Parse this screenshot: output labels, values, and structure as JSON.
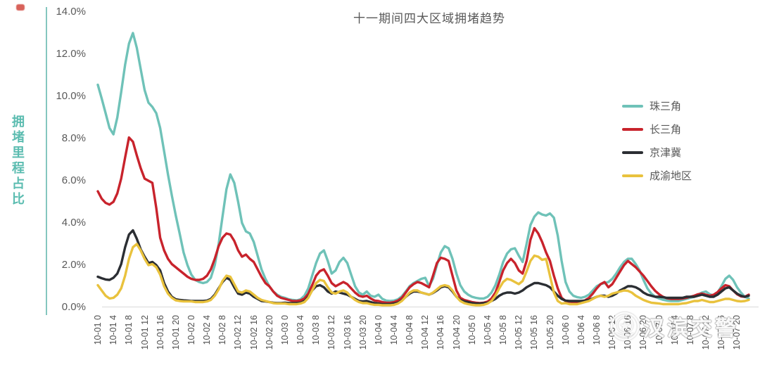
{
  "title": "十一期间四大区域拥堵趋势",
  "y_axis_title": "拥堵里程占比",
  "watermark": {
    "text": "汉滨交警",
    "icon": "police-badge-icon"
  },
  "colors": {
    "accent_axis": "#85c7bf",
    "axis_text": "#595959",
    "baseline_grid": "#d9d9d9",
    "series_zhusanjiao": "#6fc2b8",
    "series_changsanjiao": "#c8232c",
    "series_jingjinji": "#2b2e33",
    "series_chengyu": "#e9c23d"
  },
  "chart_data": {
    "type": "line",
    "title": "十一期间四大区域拥堵趋势",
    "xlabel": "",
    "ylabel": "拥堵里程占比",
    "ylim": [
      0,
      14
    ],
    "grid": "baseline-only",
    "legend_position": "right",
    "x_unit": "hourly points from 10-01 00:00 to 10-07 23:00",
    "y_ticks": [
      0,
      2,
      4,
      6,
      8,
      10,
      12,
      14
    ],
    "y_tick_labels": [
      "0.0%",
      "2.0%",
      "4.0%",
      "6.0%",
      "8.0%",
      "10.0%",
      "12.0%",
      "14.0%"
    ],
    "x_tick_hours": [
      0,
      4,
      8,
      12,
      16,
      20,
      24,
      28,
      32,
      36,
      40,
      44,
      48,
      52,
      56,
      60,
      64,
      68,
      72,
      76,
      80,
      84,
      88,
      92,
      96,
      100,
      104,
      108,
      112,
      116,
      120,
      124,
      128,
      132,
      136,
      140,
      144,
      148,
      152,
      156,
      160,
      164
    ],
    "x_tick_labels": [
      "10-01 0",
      "10-01 4",
      "10-01 8",
      "10-01 12",
      "10-01 16",
      "10-01 20",
      "10-02 0",
      "10-02 4",
      "10-02 8",
      "10-02 12",
      "10-02 16",
      "10-02 20",
      "10-03 0",
      "10-03 4",
      "10-03 8",
      "10-03 12",
      "10-03 16",
      "10-03 20",
      "10-04 0",
      "10-04 4",
      "10-04 8",
      "10-04 12",
      "10-04 16",
      "10-04 20",
      "10-05 0",
      "10-05 4",
      "10-05 8",
      "10-05 12",
      "10-05 16",
      "10-05 20",
      "10-06 0",
      "10-06 4",
      "10-06 8",
      "10-06 12",
      "10-06 16",
      "10-06 20",
      "10-07 0",
      "10-07 4",
      "10-07 8",
      "10-07 12",
      "10-07 16",
      "10-07 20"
    ],
    "series": [
      {
        "name": "珠三角",
        "color": "#6fc2b8",
        "values": [
          10.55,
          9.9,
          9.2,
          8.5,
          8.2,
          9.0,
          10.2,
          11.5,
          12.5,
          13.0,
          12.3,
          11.3,
          10.3,
          9.7,
          9.5,
          9.2,
          8.5,
          7.4,
          6.3,
          5.3,
          4.35,
          3.5,
          2.6,
          2.0,
          1.55,
          1.3,
          1.2,
          1.15,
          1.2,
          1.4,
          2.0,
          3.0,
          4.3,
          5.6,
          6.3,
          5.9,
          5.0,
          4.0,
          3.6,
          3.5,
          3.1,
          2.45,
          1.8,
          1.35,
          1.0,
          0.75,
          0.6,
          0.5,
          0.45,
          0.38,
          0.35,
          0.33,
          0.38,
          0.55,
          0.9,
          1.5,
          2.1,
          2.55,
          2.7,
          2.2,
          1.6,
          1.75,
          2.15,
          2.35,
          2.1,
          1.55,
          1.0,
          0.7,
          0.6,
          0.75,
          0.55,
          0.5,
          0.6,
          0.4,
          0.32,
          0.3,
          0.32,
          0.38,
          0.52,
          0.75,
          1.0,
          1.15,
          1.25,
          1.35,
          1.4,
          1.0,
          1.35,
          2.0,
          2.6,
          2.9,
          2.8,
          2.3,
          1.6,
          1.05,
          0.75,
          0.6,
          0.5,
          0.45,
          0.42,
          0.42,
          0.5,
          0.7,
          1.05,
          1.55,
          2.15,
          2.55,
          2.75,
          2.8,
          2.45,
          2.15,
          3.0,
          3.9,
          4.3,
          4.5,
          4.4,
          4.35,
          4.45,
          4.25,
          3.4,
          2.2,
          1.2,
          0.75,
          0.55,
          0.48,
          0.45,
          0.5,
          0.6,
          0.8,
          1.0,
          1.1,
          1.15,
          1.2,
          1.35,
          1.6,
          1.9,
          2.15,
          2.3,
          2.3,
          2.05,
          1.75,
          1.3,
          0.9,
          0.65,
          0.5,
          0.42,
          0.36,
          0.32,
          0.3,
          0.3,
          0.3,
          0.35,
          0.4,
          0.45,
          0.5,
          0.6,
          0.7,
          0.75,
          0.62,
          0.55,
          0.7,
          1.0,
          1.35,
          1.5,
          1.3,
          0.95,
          0.7,
          0.5,
          0.42
        ]
      },
      {
        "name": "长三角",
        "color": "#c8232c",
        "values": [
          5.5,
          5.15,
          4.95,
          4.87,
          5.0,
          5.4,
          6.1,
          7.1,
          8.05,
          7.85,
          7.2,
          6.6,
          6.1,
          6.0,
          5.9,
          4.7,
          3.3,
          2.7,
          2.3,
          2.05,
          1.9,
          1.75,
          1.6,
          1.45,
          1.35,
          1.3,
          1.3,
          1.35,
          1.5,
          1.8,
          2.3,
          2.9,
          3.3,
          3.5,
          3.45,
          3.15,
          2.7,
          2.4,
          2.5,
          2.3,
          2.15,
          1.8,
          1.45,
          1.15,
          1.0,
          0.75,
          0.55,
          0.45,
          0.4,
          0.35,
          0.3,
          0.3,
          0.33,
          0.42,
          0.65,
          1.05,
          1.5,
          1.72,
          1.8,
          1.5,
          1.15,
          1.0,
          1.1,
          1.2,
          1.1,
          0.9,
          0.7,
          0.55,
          0.5,
          0.55,
          0.42,
          0.32,
          0.3,
          0.25,
          0.22,
          0.22,
          0.25,
          0.32,
          0.45,
          0.7,
          0.95,
          1.1,
          1.2,
          1.15,
          1.05,
          0.95,
          1.5,
          2.1,
          2.35,
          2.3,
          2.2,
          1.5,
          0.8,
          0.45,
          0.35,
          0.3,
          0.25,
          0.22,
          0.2,
          0.22,
          0.27,
          0.42,
          0.7,
          1.2,
          1.75,
          2.1,
          2.3,
          2.1,
          1.75,
          1.6,
          2.2,
          3.2,
          3.75,
          3.5,
          3.1,
          2.6,
          2.2,
          1.5,
          0.9,
          0.45,
          0.3,
          0.27,
          0.25,
          0.25,
          0.28,
          0.33,
          0.45,
          0.65,
          0.9,
          1.1,
          1.2,
          0.95,
          1.1,
          1.4,
          1.7,
          2.0,
          2.2,
          2.05,
          1.9,
          1.7,
          1.5,
          1.25,
          1.0,
          0.78,
          0.62,
          0.5,
          0.43,
          0.4,
          0.4,
          0.4,
          0.42,
          0.45,
          0.5,
          0.55,
          0.62,
          0.65,
          0.6,
          0.55,
          0.6,
          0.72,
          0.9,
          1.05,
          1.0,
          0.8,
          0.62,
          0.52,
          0.5,
          0.6
        ]
      },
      {
        "name": "京津冀",
        "color": "#2b2e33",
        "values": [
          1.45,
          1.38,
          1.32,
          1.3,
          1.4,
          1.6,
          2.05,
          2.85,
          3.45,
          3.65,
          3.25,
          2.75,
          2.4,
          2.1,
          2.15,
          2.0,
          1.75,
          1.15,
          0.75,
          0.5,
          0.38,
          0.35,
          0.33,
          0.32,
          0.3,
          0.3,
          0.3,
          0.3,
          0.32,
          0.4,
          0.6,
          0.9,
          1.2,
          1.4,
          1.3,
          0.95,
          0.65,
          0.6,
          0.7,
          0.65,
          0.5,
          0.4,
          0.3,
          0.28,
          0.25,
          0.22,
          0.2,
          0.2,
          0.22,
          0.2,
          0.2,
          0.2,
          0.22,
          0.3,
          0.5,
          0.8,
          1.0,
          1.05,
          0.95,
          0.75,
          0.65,
          0.75,
          0.7,
          0.65,
          0.6,
          0.5,
          0.4,
          0.3,
          0.28,
          0.3,
          0.25,
          0.2,
          0.18,
          0.15,
          0.15,
          0.15,
          0.18,
          0.22,
          0.32,
          0.5,
          0.65,
          0.75,
          0.75,
          0.7,
          0.65,
          0.6,
          0.68,
          0.8,
          0.95,
          1.0,
          0.95,
          0.75,
          0.5,
          0.35,
          0.28,
          0.25,
          0.2,
          0.18,
          0.18,
          0.2,
          0.22,
          0.3,
          0.4,
          0.55,
          0.65,
          0.7,
          0.7,
          0.65,
          0.7,
          0.8,
          0.95,
          1.05,
          1.15,
          1.15,
          1.1,
          1.05,
          0.95,
          0.75,
          0.55,
          0.4,
          0.32,
          0.3,
          0.3,
          0.3,
          0.3,
          0.32,
          0.35,
          0.42,
          0.5,
          0.55,
          0.55,
          0.5,
          0.55,
          0.65,
          0.8,
          0.9,
          1.0,
          1.0,
          0.95,
          0.85,
          0.7,
          0.6,
          0.55,
          0.5,
          0.5,
          0.48,
          0.45,
          0.45,
          0.45,
          0.45,
          0.45,
          0.5,
          0.5,
          0.5,
          0.55,
          0.6,
          0.55,
          0.5,
          0.5,
          0.6,
          0.75,
          0.9,
          0.95,
          0.8,
          0.65,
          0.55,
          0.5,
          0.55
        ]
      },
      {
        "name": "成渝地区",
        "color": "#e9c23d",
        "values": [
          1.05,
          0.8,
          0.55,
          0.42,
          0.45,
          0.6,
          0.9,
          1.5,
          2.3,
          2.85,
          3.0,
          2.7,
          2.3,
          2.0,
          2.05,
          1.9,
          1.55,
          1.0,
          0.65,
          0.45,
          0.33,
          0.3,
          0.28,
          0.28,
          0.28,
          0.25,
          0.25,
          0.25,
          0.28,
          0.35,
          0.55,
          0.85,
          1.25,
          1.5,
          1.45,
          1.1,
          0.75,
          0.7,
          0.8,
          0.75,
          0.6,
          0.45,
          0.35,
          0.3,
          0.25,
          0.2,
          0.18,
          0.18,
          0.18,
          0.15,
          0.15,
          0.15,
          0.18,
          0.25,
          0.45,
          0.8,
          1.15,
          1.3,
          1.25,
          0.95,
          0.7,
          0.65,
          0.75,
          0.8,
          0.7,
          0.5,
          0.35,
          0.25,
          0.2,
          0.2,
          0.15,
          0.12,
          0.12,
          0.1,
          0.1,
          0.1,
          0.12,
          0.18,
          0.3,
          0.5,
          0.7,
          0.8,
          0.8,
          0.7,
          0.65,
          0.6,
          0.7,
          0.85,
          1.0,
          1.05,
          1.0,
          0.8,
          0.5,
          0.3,
          0.2,
          0.15,
          0.12,
          0.1,
          0.1,
          0.12,
          0.18,
          0.3,
          0.55,
          0.9,
          1.2,
          1.35,
          1.3,
          1.2,
          1.1,
          1.25,
          1.7,
          2.2,
          2.45,
          2.4,
          2.25,
          2.3,
          1.5,
          0.7,
          0.3,
          0.18,
          0.2,
          0.15,
          0.15,
          0.15,
          0.2,
          0.25,
          0.3,
          0.4,
          0.5,
          0.55,
          0.5,
          0.55,
          0.65,
          0.7,
          0.75,
          0.8,
          0.78,
          0.7,
          0.55,
          0.45,
          0.35,
          0.28,
          0.22,
          0.2,
          0.18,
          0.15,
          0.15,
          0.15,
          0.15,
          0.15,
          0.18,
          0.2,
          0.25,
          0.3,
          0.3,
          0.35,
          0.3,
          0.25,
          0.25,
          0.3,
          0.35,
          0.4,
          0.4,
          0.35,
          0.3,
          0.28,
          0.3,
          0.35
        ]
      }
    ]
  }
}
